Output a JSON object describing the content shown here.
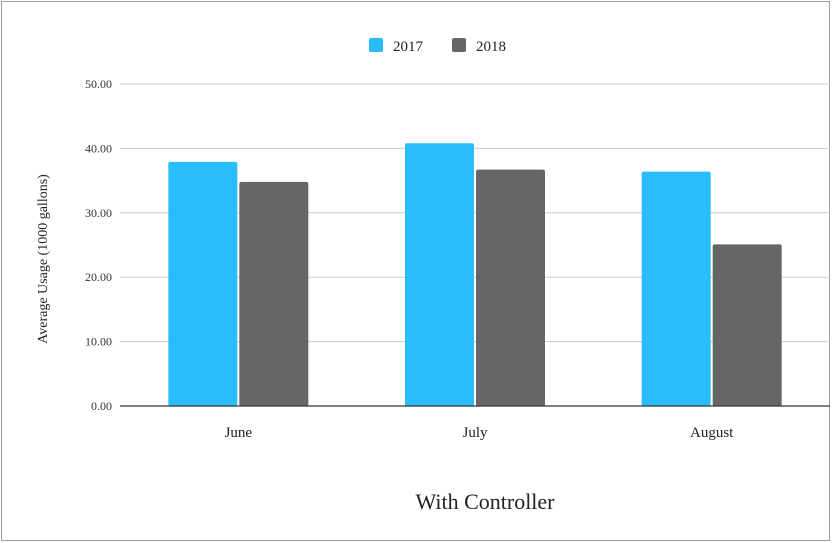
{
  "chart_data": {
    "type": "bar",
    "categories": [
      "June",
      "July",
      "August"
    ],
    "series": [
      {
        "name": "2017",
        "color": "#29BDFD",
        "values": [
          37.9,
          40.8,
          36.4
        ]
      },
      {
        "name": "2018",
        "color": "#666666",
        "values": [
          34.8,
          36.7,
          25.1
        ]
      }
    ],
    "title": "",
    "xlabel": "With Controller",
    "ylabel": "Average Usage (1000 gallons)",
    "ylim": [
      0,
      50
    ],
    "yticks": [
      "0.00",
      "10.00",
      "20.00",
      "30.00",
      "40.00",
      "50.00"
    ],
    "grid": true,
    "legend": "top-center"
  }
}
